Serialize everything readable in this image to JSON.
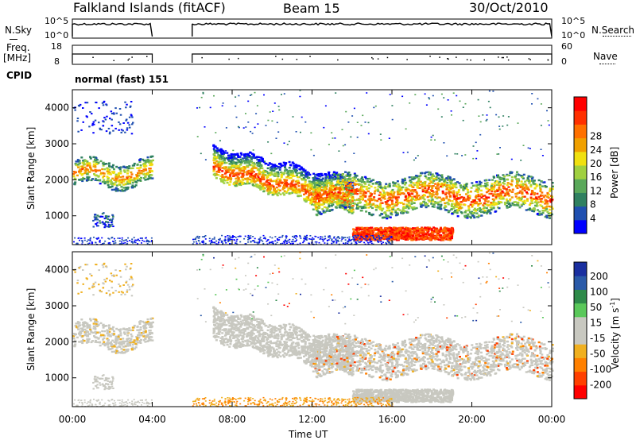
{
  "header": {
    "station": "Falkland Islands (fitACF)",
    "beam": "Beam 15",
    "date": "30/Oct/2010"
  },
  "side_labels": {
    "nsky": "N.Sky",
    "freq_top": "Freq.",
    "freq_unit": "[MHz]",
    "cpid": "CPID",
    "nsearch": "N.Search",
    "nave": "Nave",
    "cpid_value": "normal (fast) 151"
  },
  "small_axes": {
    "noise_left_top": "10^5",
    "noise_left_bottom": "10^0",
    "noise_right_top": "10^5",
    "noise_right_bottom": "10^0",
    "freq_left_top": "18",
    "freq_left_bottom": "8",
    "nave_right_top": "60",
    "nave_right_bottom": "0"
  },
  "colors": {
    "power": [
      "#0000ff",
      "#1f4fb0",
      "#2f8060",
      "#5aa85a",
      "#a0d040",
      "#f0e010",
      "#f0a000",
      "#ff7000",
      "#ff3000",
      "#ff0000"
    ],
    "velocity": [
      "#1a2fa0",
      "#2a5aa8",
      "#2e8a4a",
      "#5ac85a",
      "#c8c8c0",
      "#c8c8c0",
      "#f0b020",
      "#ff8000",
      "#ff4000",
      "#ff0000"
    ]
  },
  "chart_data": [
    {
      "type": "heatmap",
      "name": "Power",
      "xlabel": "",
      "ylabel": "Slant Range [km]",
      "yticks": [
        "1000",
        "2000",
        "3000",
        "4000"
      ],
      "colorbar_label": "Power [dB]",
      "colorbar_ticks": [
        "4",
        "8",
        "12",
        "16",
        "20",
        "24",
        "28"
      ],
      "ylim": [
        200,
        4500
      ],
      "xlim_hours": [
        0,
        24
      ],
      "data_gap_hours": [
        4,
        6
      ],
      "dominant_echo_ranges_km": [
        {
          "t_start_h": 0.0,
          "t_end_h": 4.0,
          "range_km": 2200
        },
        {
          "t_start_h": 7.0,
          "t_end_h": 14.0,
          "range_km": 1700
        },
        {
          "t_start_h": 14.0,
          "t_end_h": 19.0,
          "range_km": 500
        },
        {
          "t_start_h": 14.0,
          "t_end_h": 24.0,
          "range_km": 1500
        }
      ]
    },
    {
      "type": "heatmap",
      "name": "Velocity",
      "xlabel": "Time UT",
      "ylabel": "Slant Range [km]",
      "yticks": [
        "1000",
        "2000",
        "3000",
        "4000"
      ],
      "xticks": [
        "00:00",
        "04:00",
        "08:00",
        "12:00",
        "16:00",
        "20:00",
        "00:00"
      ],
      "colorbar_label": "Velocity [m s-1]",
      "colorbar_ticks": [
        "200",
        "100",
        "50",
        "15",
        "-15",
        "-50",
        "-100",
        "-200"
      ],
      "ylim": [
        200,
        4500
      ],
      "xlim_hours": [
        0,
        24
      ],
      "data_gap_hours": [
        4,
        6
      ]
    }
  ]
}
